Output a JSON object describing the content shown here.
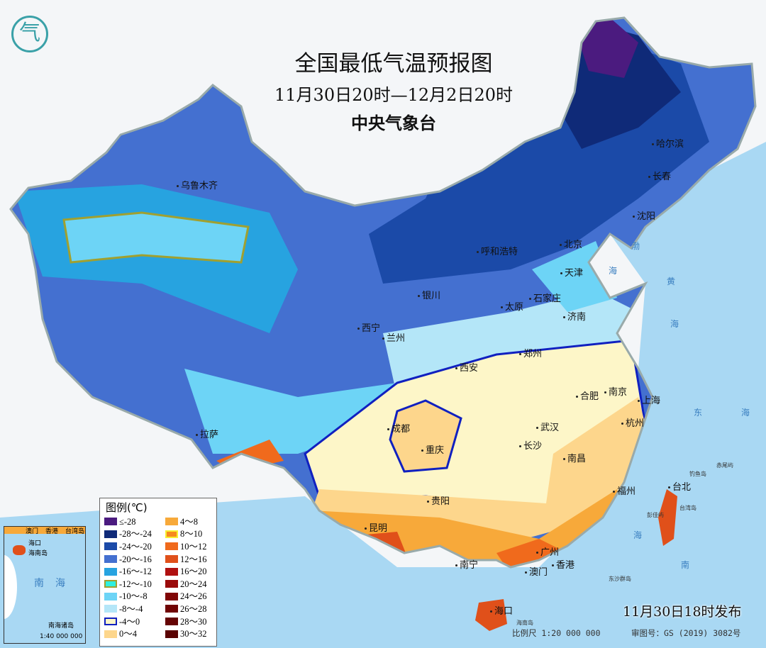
{
  "title": "全国最低气温预报图",
  "period": "11月30日20时—12月2日20时",
  "issuer": "中央气象台",
  "logo_text": "气",
  "issue_time": "11月30日18时发布",
  "scale": "比例尺 1:20 000 000",
  "map_approval": "审图号：GS (2019) 3082号",
  "cities": [
    "乌鲁木齐",
    "哈尔滨",
    "长春",
    "沈阳",
    "呼和浩特",
    "北京",
    "天津",
    "石家庄",
    "太原",
    "济南",
    "银川",
    "西宁",
    "兰州",
    "西安",
    "郑州",
    "合肥",
    "南京",
    "上海",
    "杭州",
    "成都",
    "重庆",
    "武汉",
    "拉萨",
    "长沙",
    "南昌",
    "贵阳",
    "昆明",
    "福州",
    "台北",
    "南宁",
    "广州",
    "澳门",
    "香港",
    "海口"
  ],
  "sea_labels": [
    "渤",
    "海",
    "黄",
    "海",
    "东",
    "海",
    "海",
    "南",
    "南海诸岛",
    "钓鱼岛",
    "赤尾屿",
    "海南岛",
    "台湾岛",
    "彭佳屿",
    "东沙群岛"
  ],
  "legend": {
    "title": "图例(℃)",
    "items": [
      {
        "label": "≤-28",
        "color": "#4b1b7f"
      },
      {
        "label": "-28～-24",
        "color": "#0f2a78"
      },
      {
        "label": "-24～-20",
        "color": "#1b4aa8"
      },
      {
        "label": "-20～-16",
        "color": "#4470d0"
      },
      {
        "label": "-16～-12",
        "color": "#27a3e0"
      },
      {
        "label": "-12～-10",
        "color": "#2ef0e0",
        "border": "#a0a030"
      },
      {
        "label": "-10～-8",
        "color": "#6dd4f6"
      },
      {
        "label": "-8～-4",
        "color": "#b4e6f8"
      },
      {
        "label": "-4～0",
        "color": "#fdf6c8",
        "border": "#1020c0"
      },
      {
        "label": "0～4",
        "color": "#fdd68c"
      },
      {
        "label": "4～8",
        "color": "#f7a93a"
      },
      {
        "label": "8～10",
        "color": "#f68a1e",
        "border": "#f8f030"
      },
      {
        "label": "10～12",
        "color": "#f06a1c"
      },
      {
        "label": "12～16",
        "color": "#e0501a"
      },
      {
        "label": "16～20",
        "color": "#b01010"
      },
      {
        "label": "20～24",
        "color": "#9a0a0a"
      },
      {
        "label": "24～26",
        "color": "#800606"
      },
      {
        "label": "26～28",
        "color": "#700404"
      },
      {
        "label": "28～30",
        "color": "#650303"
      },
      {
        "label": "30～32",
        "color": "#5a0202"
      }
    ]
  },
  "inset": {
    "labels": [
      "澳门",
      "香港",
      "台湾岛",
      "海口",
      "海南岛",
      "南",
      "海",
      "南海诸岛"
    ],
    "scale": "1:40 000 000"
  }
}
